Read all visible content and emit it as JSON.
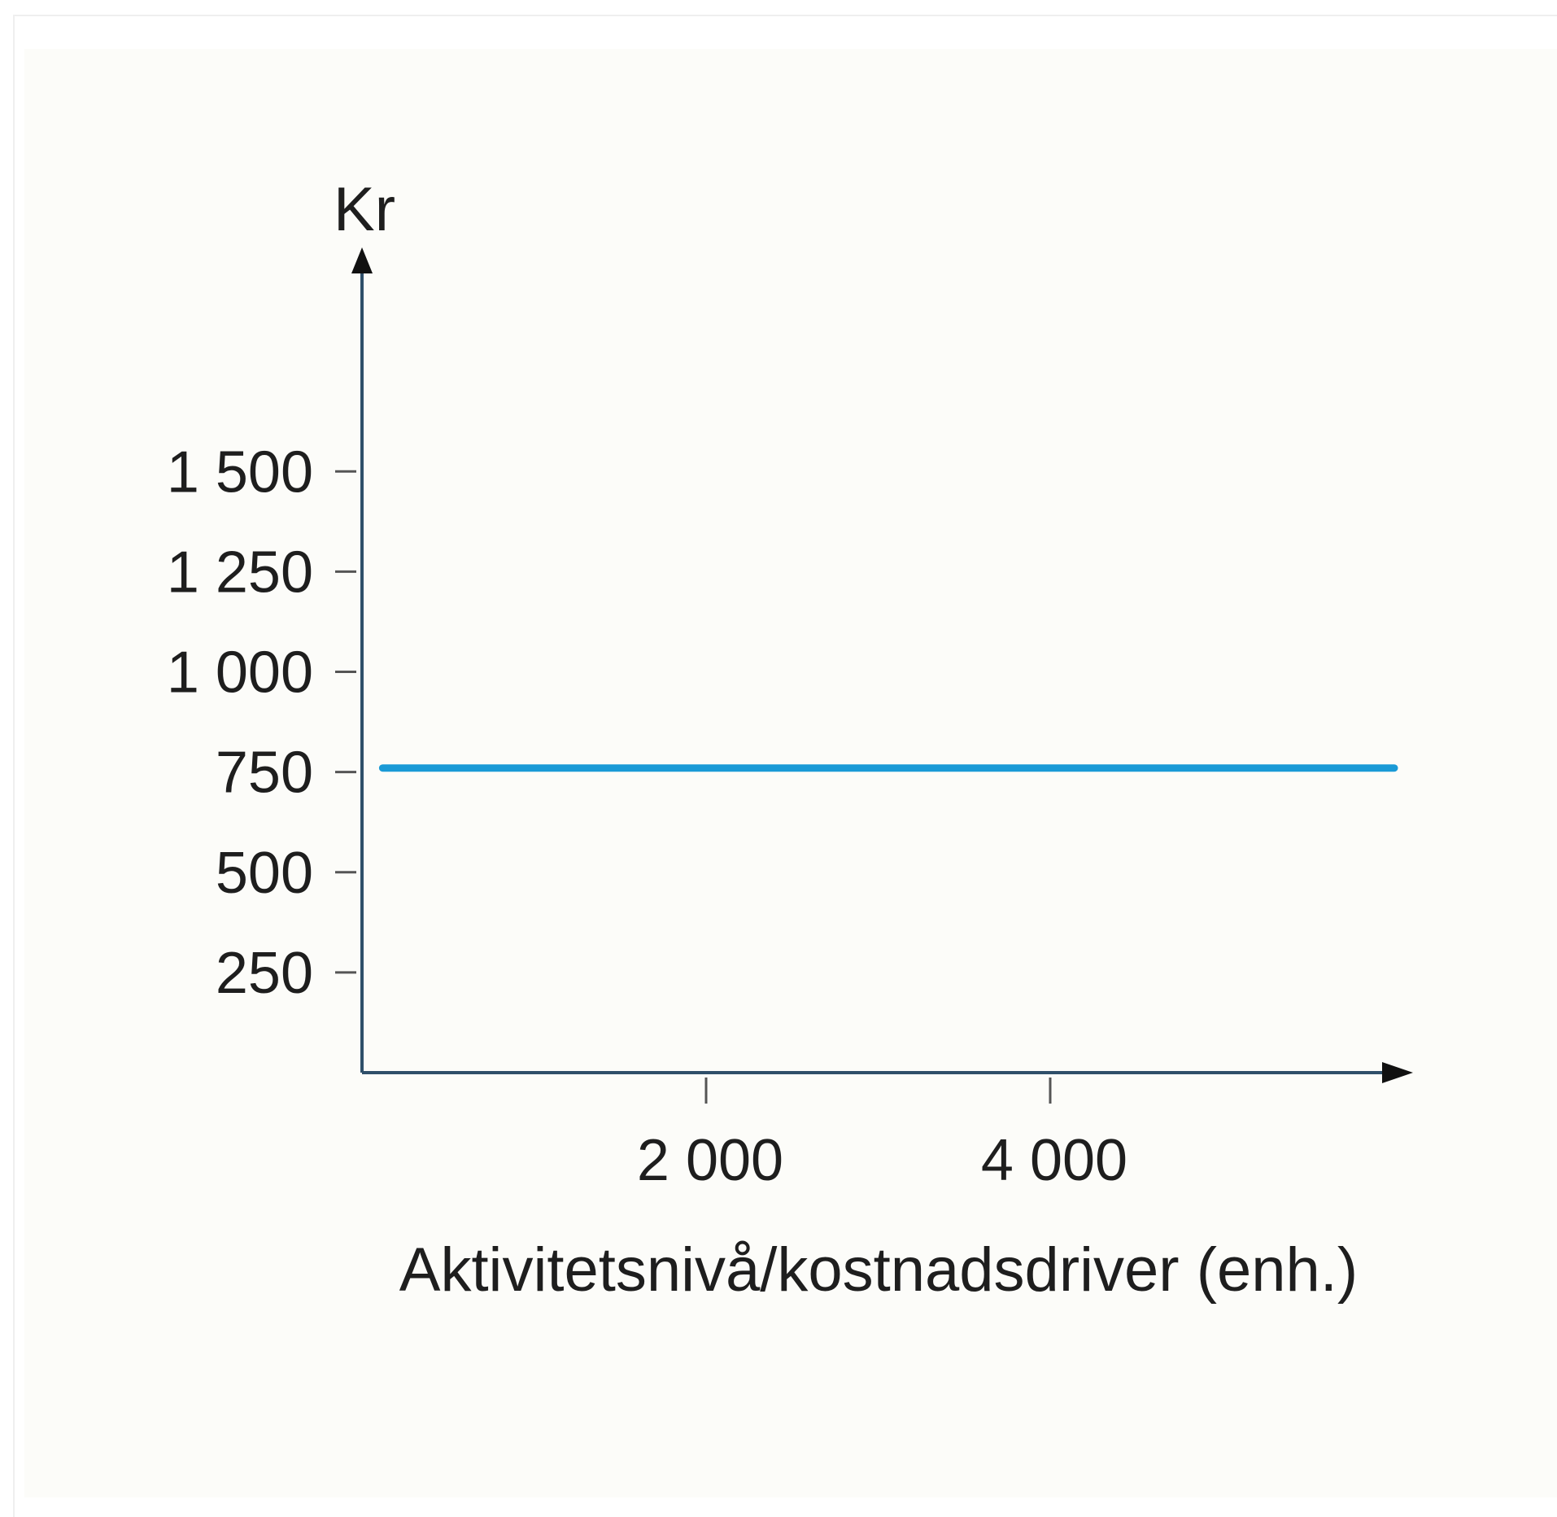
{
  "chart_data": {
    "type": "line",
    "title": "",
    "ylabel": "Kr",
    "xlabel": "Aktivitetsnivå/kostnadsdriver (enh.)",
    "y_ticks": [
      {
        "value": 250,
        "label": "250"
      },
      {
        "value": 500,
        "label": "500"
      },
      {
        "value": 750,
        "label": "750"
      },
      {
        "value": 1000,
        "label": "1 000"
      },
      {
        "value": 1250,
        "label": "1 250"
      },
      {
        "value": 1500,
        "label": "1 500"
      }
    ],
    "x_ticks": [
      {
        "value": 2000,
        "label": "2 000"
      },
      {
        "value": 4000,
        "label": "4 000"
      }
    ],
    "xlim": [
      0,
      6200
    ],
    "ylim": [
      0,
      2000
    ],
    "grid": false,
    "series": [
      {
        "x": [
          120,
          6000
        ],
        "y": [
          760,
          760
        ],
        "color": "#1a9ad6"
      }
    ],
    "colors": {
      "axis": "#2f4f6a",
      "tick": "#555555",
      "line": "#1a9ad6"
    }
  }
}
